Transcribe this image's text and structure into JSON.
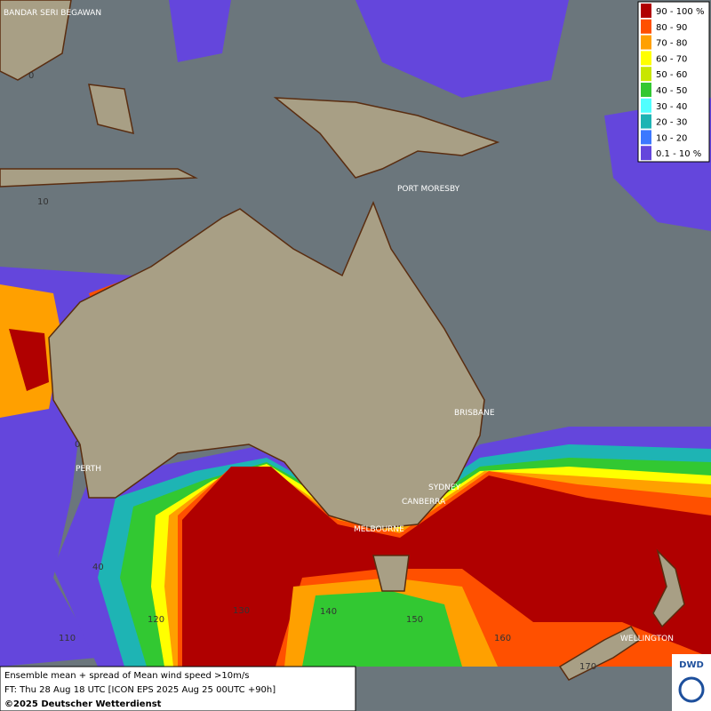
{
  "legend": [
    {
      "label": "90 - 100 %",
      "color": "#b00000"
    },
    {
      "label": "80 - 90",
      "color": "#ff5000"
    },
    {
      "label": "70 - 80",
      "color": "#ffa000"
    },
    {
      "label": "60 - 70",
      "color": "#ffff00"
    },
    {
      "label": "50 - 60",
      "color": "#c8e600"
    },
    {
      "label": "40 - 50",
      "color": "#32c832"
    },
    {
      "label": "30 - 40",
      "color": "#50ffff"
    },
    {
      "label": "20 - 30",
      "color": "#1eb4b4"
    },
    {
      "label": "10 - 20",
      "color": "#3c78ff"
    },
    {
      "label": "0.1 - 10 %",
      "color": "#6446dc"
    }
  ],
  "places": [
    "BANDAR SERI BEGAWAN",
    "PORT MORESBY",
    "BRISBANE",
    "PERTH",
    "SYDNEY",
    "CANBERRA",
    "MELBOURNE",
    "WELLINGTON"
  ],
  "grid_labels": [
    "0",
    "10",
    "0",
    "40",
    "110",
    "120",
    "130",
    "140",
    "150",
    "160",
    "170"
  ],
  "caption": [
    "Ensemble mean + spread of Mean wind speed >10m/s",
    "FT: Thu 28 Aug 18 UTC [ICON EPS 2025 Aug 25 00UTC +90h]",
    "©2025 Deutscher Wetterdienst"
  ],
  "logo": "DWD"
}
